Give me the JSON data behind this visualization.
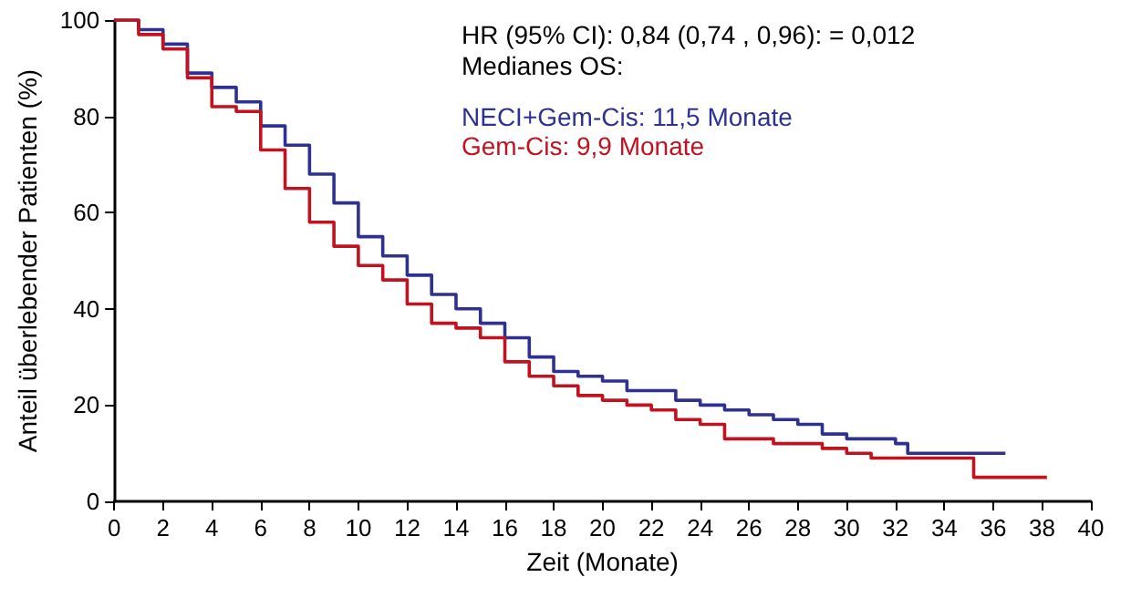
{
  "chart_data": {
    "type": "step",
    "xlabel": "Zeit (Monate)",
    "ylabel": "Anteil überlebender Patienten (%)",
    "annotations": [
      "HR (95% CI): 0,84 (0,74 , 0,96): = 0,012",
      "Medianes OS:"
    ],
    "xlim": [
      0,
      40
    ],
    "xticks": [
      0,
      2,
      4,
      6,
      8,
      10,
      12,
      14,
      16,
      18,
      20,
      22,
      24,
      26,
      28,
      30,
      32,
      34,
      36,
      38,
      40
    ],
    "ylim": [
      0,
      100
    ],
    "yticks": [
      0,
      20,
      40,
      60,
      80,
      100
    ],
    "grid": false,
    "legend": "top right",
    "marker": "none",
    "line_style": "solid",
    "series": [
      {
        "name": "NECI+Gem-Cis: 11,5 Monate",
        "color": "#2e3192",
        "x": [
          0,
          1,
          2,
          3,
          4,
          5,
          6,
          7,
          8,
          9,
          10,
          11,
          12,
          13,
          14,
          15,
          16,
          17,
          18,
          19,
          20,
          21,
          22,
          23,
          24,
          25,
          26,
          27,
          28,
          29,
          30,
          31,
          32,
          32.5,
          36.5
        ],
        "values": [
          100,
          98,
          95,
          89,
          86,
          83,
          78,
          74,
          68,
          62,
          55,
          51,
          47,
          43,
          40,
          37,
          34,
          30,
          27,
          26,
          25,
          23,
          23,
          21,
          20,
          19,
          18,
          17,
          16,
          14,
          13,
          13,
          12,
          10,
          10
        ]
      },
      {
        "name": "Gem-Cis: 9,9 Monate",
        "color": "#c1121f",
        "x": [
          0,
          1,
          2,
          3,
          4,
          5,
          6,
          7,
          8,
          9,
          10,
          11,
          12,
          13,
          14,
          15,
          16,
          17,
          18,
          19,
          20,
          21,
          22,
          23,
          24,
          25,
          26,
          27,
          28,
          29,
          30,
          31,
          32,
          35,
          35.2,
          38.2
        ],
        "values": [
          100,
          97,
          94,
          88,
          82,
          81,
          73,
          65,
          58,
          53,
          49,
          46,
          41,
          37,
          36,
          34,
          29,
          26,
          24,
          22,
          21,
          20,
          19,
          17,
          16,
          13,
          13,
          12,
          12,
          11,
          10,
          9,
          9,
          9,
          5,
          5
        ]
      }
    ]
  }
}
